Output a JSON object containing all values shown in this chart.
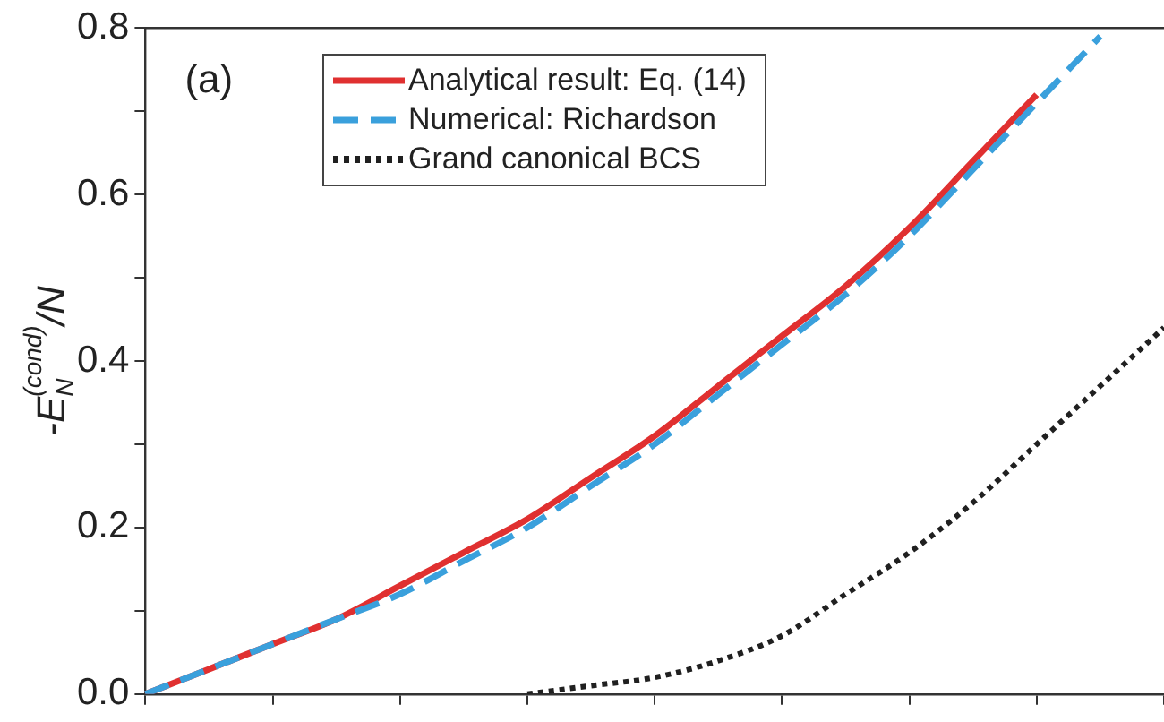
{
  "chart_data": {
    "type": "line",
    "ylabel": "-E$_{N}$$^{(cond)}$/N",
    "annotations": [
      "(a)"
    ],
    "categories": [
      null,
      null,
      null,
      null,
      null,
      null,
      null,
      null,
      null,
      null,
      null,
      null,
      null,
      null,
      null,
      null,
      null
    ],
    "series": [
      {
        "name": "Analytical result: Eq. (14)",
        "color": "#e03030",
        "line_style": "solid",
        "values": [
          0,
          0.03,
          0.06,
          0.09,
          0.13,
          0.17,
          0.21,
          0.26,
          0.31,
          0.37,
          0.43,
          0.49,
          0.56,
          0.64,
          0.72,
          null,
          null
        ]
      },
      {
        "name": "Numerical: Richardson",
        "color": "#3aa0dc",
        "line_style": "dashed",
        "values": [
          0,
          0.03,
          0.06,
          0.09,
          0.12,
          0.16,
          0.2,
          0.25,
          0.3,
          0.36,
          0.42,
          0.48,
          0.55,
          0.63,
          0.71,
          0.79,
          null
        ]
      },
      {
        "name": "Grand canonical BCS",
        "color": "#202020",
        "line_style": "dotted",
        "values": [
          null,
          null,
          null,
          null,
          null,
          null,
          0,
          0.01,
          0.02,
          0.04,
          0.07,
          0.12,
          0.17,
          0.23,
          0.3,
          0.37,
          0.44
        ]
      }
    ],
    "ylim": [
      0,
      0.8
    ],
    "yticks": [
      {
        "value": 0,
        "label": "0.0"
      },
      {
        "value": 0.1,
        "label": null
      },
      {
        "value": 0.2,
        "label": "0.2"
      },
      {
        "value": 0.3,
        "label": null
      },
      {
        "value": 0.4,
        "label": "0.4"
      },
      {
        "value": 0.5,
        "label": null
      },
      {
        "value": 0.6,
        "label": "0.6"
      },
      {
        "value": 0.7,
        "label": null
      },
      {
        "value": 0.8,
        "label": "0.8"
      }
    ],
    "tick_labels": "y",
    "grid": false,
    "legend": "top left",
    "marker": "none"
  }
}
